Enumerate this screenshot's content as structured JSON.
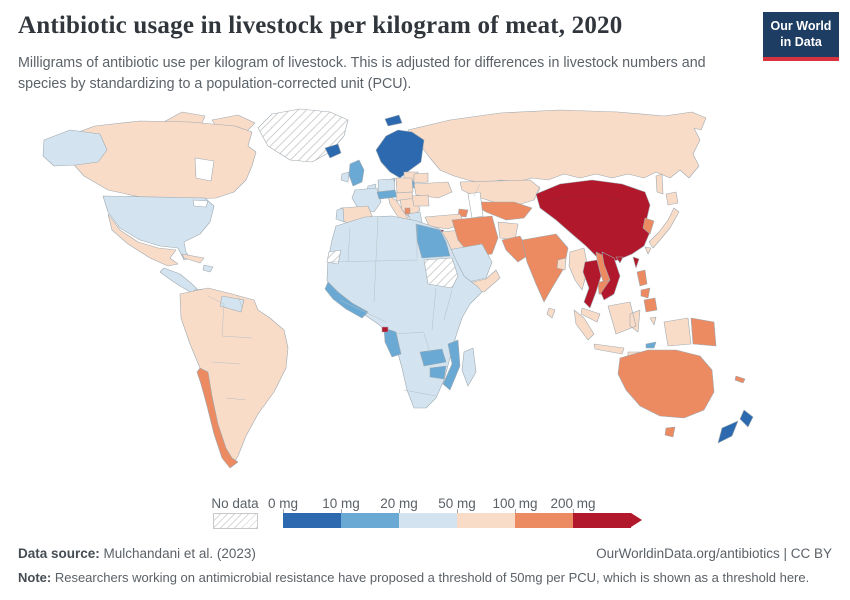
{
  "header": {
    "title": "Antibiotic usage in livestock per kilogram of meat, 2020",
    "subtitle": "Milligrams of antibiotic use per kilogram of livestock. This is adjusted for differences in livestock numbers and species by standardizing to a population-corrected unit (PCU).",
    "logo": {
      "line1": "Our World",
      "line2": "in Data",
      "bg": "#1d3d63",
      "accent": "#d6333f",
      "text_color": "#ffffff"
    }
  },
  "legend": {
    "no_data_label": "No data",
    "tick_labels": [
      "0 mg",
      "10 mg",
      "20 mg",
      "50 mg",
      "100 mg",
      "200 mg"
    ],
    "bin_colors": [
      "#2c69ae",
      "#6aa9d4",
      "#d3e4f0",
      "#f9dcc8",
      "#ec8a62",
      "#b2182b"
    ]
  },
  "footer": {
    "source_label": "Data source:",
    "source_value": " Mulchandani et al. (2023)",
    "credit": "OurWorldinData.org/antibiotics | CC BY",
    "note_label": "Note:",
    "note_text": " Researchers working on antimicrobial resistance have proposed a threshold of 50mg per PCU, which is shown as a threshold here."
  },
  "chart_data": {
    "type": "heatmap",
    "variant": "world-choropleth",
    "title": "Antibiotic usage in livestock per kilogram of meat, 2020",
    "unit": "mg of antibiotic use per kilogram of livestock (PCU-adjusted)",
    "year": "2020",
    "legend_position": "bottom",
    "bins": [
      {
        "label": "0-10 mg",
        "color": "#2c69ae",
        "countries": [
          "Norway",
          "Sweden",
          "Finland",
          "Iceland",
          "New Zealand",
          "Svalbard"
        ]
      },
      {
        "label": "10-20 mg",
        "color": "#6aa9d4",
        "countries": [
          "United Kingdom",
          "Switzerland",
          "Austria",
          "Lithuania",
          "Egypt",
          "Guinea",
          "Sierra Leone",
          "Liberia",
          "Cote d'Ivoire",
          "Ghana",
          "Gabon",
          "Republic of Congo",
          "Zambia",
          "Zimbabwe",
          "Mozambique",
          "Timor-Leste"
        ]
      },
      {
        "label": "20-50 mg",
        "color": "#d3e4f0",
        "countries": [
          "United States",
          "France",
          "Germany",
          "Ireland",
          "Portugal",
          "Denmark",
          "Greece",
          "Algeria",
          "Morocco",
          "Libya",
          "Nigeria",
          "Ethiopia",
          "Kenya",
          "Tanzania",
          "South Africa",
          "Madagascar",
          "Saudi Arabia",
          "Guatemala",
          "Nicaragua",
          "Guyana",
          "Suriname",
          "Haiti"
        ]
      },
      {
        "label": "50-100 mg",
        "color": "#f9dcc8",
        "countries": [
          "Canada",
          "Mexico",
          "Cuba",
          "Brazil",
          "Argentina",
          "Colombia",
          "Peru",
          "Venezuela",
          "Spain",
          "Italy",
          "Poland",
          "Ukraine",
          "Romania",
          "Russia",
          "Turkey",
          "Kazakhstan",
          "Afghanistan",
          "Yemen",
          "Oman",
          "Myanmar",
          "Bangladesh",
          "Sri Lanka",
          "Japan",
          "Malaysia",
          "Indonesia"
        ]
      },
      {
        "label": "100-200 mg",
        "color": "#ec8a62",
        "countries": [
          "Chile",
          "Iran",
          "Turkmenistan",
          "Uzbekistan",
          "Pakistan",
          "India",
          "Laos",
          "Cambodia",
          "Philippines",
          "South Korea",
          "Australia",
          "Papua New Guinea",
          "Albania",
          "Azerbaijan",
          "New Caledonia"
        ]
      },
      {
        "label": "200+ mg",
        "color": "#b2182b",
        "countries": [
          "China",
          "Mongolia",
          "Thailand",
          "Vietnam",
          "Taiwan",
          "Cyprus",
          "Equatorial Guinea"
        ]
      }
    ],
    "no_data": [
      "Greenland",
      "Sudan",
      "Western Sahara"
    ]
  },
  "map": {
    "ocean": "#ffffff",
    "border_color": "#9fa9b0",
    "regions": {
      "greenland": "hatch",
      "sudan": "hatch",
      "western-sahara": "hatch",
      "canada": "#f9dcc8",
      "arctic-islands": "#f9dcc8",
      "hudson-bay": "#ffffff",
      "great-lakes": "#ffffff",
      "alaska": "#d3e4f0",
      "usa": "#d3e4f0",
      "mexico": "#f9dcc8",
      "central-america": "#d3e4f0",
      "panama": "#f9dcc8",
      "cuba": "#f9dcc8",
      "hispaniola": "#d3e4f0",
      "south-america": "#f9dcc8",
      "chile": "#ec8a62",
      "guianas": "#d3e4f0",
      "iceland": "#2c69ae",
      "svalbard": "#2c69ae",
      "scandinavia": "#2c69ae",
      "denmark": "#d3e4f0",
      "baltics": "#f9dcc8",
      "lithuania": "#6aa9d4",
      "uk": "#6aa9d4",
      "ireland": "#d3e4f0",
      "benelux": "#d3e4f0",
      "germany": "#d3e4f0",
      "poland": "#f9dcc8",
      "france": "#d3e4f0",
      "spain": "#f9dcc8",
      "portugal": "#d3e4f0",
      "italy": "#f9dcc8",
      "alpine": "#6aa9d4",
      "central-europe": "#f9dcc8",
      "balkans": "#f9dcc8",
      "albania": "#ec8a62",
      "greece": "#d3e4f0",
      "romania-bulgaria": "#f9dcc8",
      "ukraine": "#f9dcc8",
      "belarus": "#f9dcc8",
      "russia": "#f9dcc8",
      "sakhalin": "#f9dcc8",
      "kazakhstan": "#f9dcc8",
      "uzbek-turkmen": "#ec8a62",
      "azerbaijan": "#ec8a62",
      "caspian-sea": "#ffffff",
      "turkey": "#f9dcc8",
      "cyprus": "#b2182b",
      "iraq-syria": "#f9dcc8",
      "saudi": "#d3e4f0",
      "yemen-oman": "#f9dcc8",
      "iran": "#ec8a62",
      "afghanistan": "#f9dcc8",
      "pakistan": "#ec8a62",
      "india": "#ec8a62",
      "bangladesh": "#f9dcc8",
      "sri-lanka": "#f9dcc8",
      "myanmar": "#f9dcc8",
      "china-mongolia": "#b2182b",
      "hainan": "#b2182b",
      "taiwan": "#b2182b",
      "south-korea": "#ec8a62",
      "japan": "#f9dcc8",
      "thailand": "#b2182b",
      "laos": "#ec8a62",
      "cambodia": "#ec8a62",
      "vietnam": "#b2182b",
      "malaysia": "#f9dcc8",
      "philippines": "#ec8a62",
      "indonesia": "#f9dcc8",
      "timor": "#6aa9d4",
      "png": "#ec8a62",
      "new-caledonia": "#ec8a62",
      "australia": "#ec8a62",
      "tasmania": "#ec8a62",
      "new-zealand": "#2c69ae",
      "africa": "#d3e4f0",
      "egypt": "#6aa9d4",
      "west-africa": "#6aa9d4",
      "gabon-congo": "#6aa9d4",
      "eq-guinea": "#b2182b",
      "zambia": "#6aa9d4",
      "zimbabwe": "#6aa9d4",
      "mozambique": "#6aa9d4",
      "madagascar": "#d3e4f0"
    }
  }
}
